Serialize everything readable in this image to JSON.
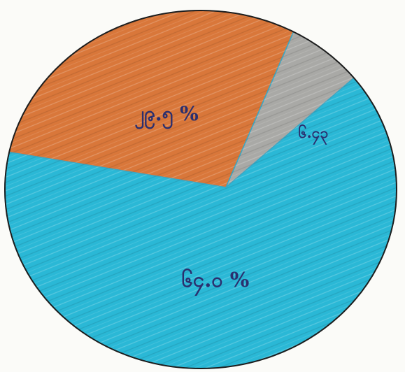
{
  "chart_data": {
    "type": "pie",
    "slices": [
      {
        "label": "၂၉.၅ %",
        "value": 29.5,
        "color": "#d9773a"
      },
      {
        "label": "၆.၄၃",
        "value": 6.43,
        "color": "#a9a9a6"
      },
      {
        "label": "၆၄.၀ %",
        "value": 64.0,
        "color": "#2ab8d6"
      }
    ]
  }
}
